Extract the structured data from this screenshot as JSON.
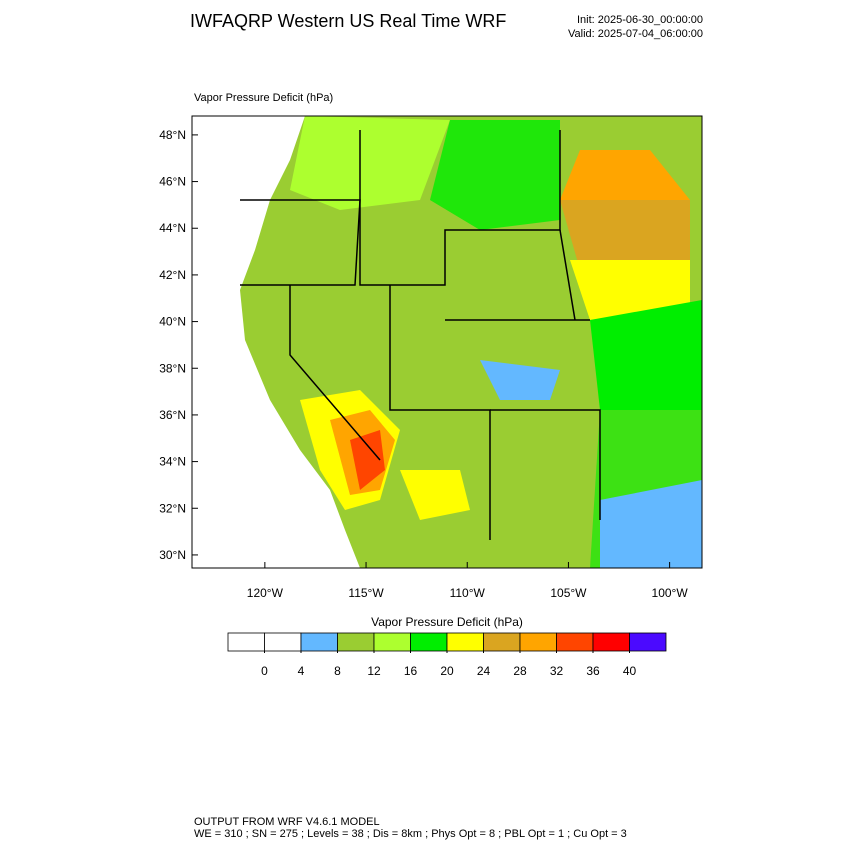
{
  "header": {
    "title": "IWFAQRP Western US Real Time WRF",
    "init": "Init: 2025-06-30_00:00:00",
    "valid": "Valid: 2025-07-04_06:00:00"
  },
  "map": {
    "field_label": "Vapor Pressure Deficit   (hPa)",
    "lon_range": [
      -123.6,
      -98.4
    ],
    "lat_range": [
      29.44,
      48.81
    ],
    "lat_ticks": [
      {
        "value": 30,
        "label": "30°N"
      },
      {
        "value": 32,
        "label": "32°N"
      },
      {
        "value": 34,
        "label": "34°N"
      },
      {
        "value": 36,
        "label": "36°N"
      },
      {
        "value": 38,
        "label": "38°N"
      },
      {
        "value": 40,
        "label": "40°N"
      },
      {
        "value": 42,
        "label": "42°N"
      },
      {
        "value": 44,
        "label": "44°N"
      },
      {
        "value": 46,
        "label": "46°N"
      },
      {
        "value": 48,
        "label": "48°N"
      }
    ],
    "lon_ticks": [
      {
        "value": -120,
        "label": "120°W"
      },
      {
        "value": -115,
        "label": "115°W"
      },
      {
        "value": -110,
        "label": "110°W"
      },
      {
        "value": -105,
        "label": "105°W"
      },
      {
        "value": -100,
        "label": "100°W"
      }
    ]
  },
  "colorbar": {
    "title": "Vapor Pressure Deficit  (hPa)",
    "levels": [
      0,
      4,
      8,
      12,
      16,
      20,
      24,
      28,
      32,
      36,
      40
    ],
    "colors": [
      "#ffffff",
      "#ffffff",
      "#63b8ff",
      "#9acd32",
      "#adff2f",
      "#00ee00",
      "#ffff00",
      "#daa520",
      "#ffa500",
      "#ff4500",
      "#ff0000",
      "#4b0aff"
    ]
  },
  "footer": {
    "line1": "OUTPUT FROM WRF V4.6.1 MODEL",
    "line2": "WE = 310 ; SN = 275 ; Levels = 38 ; Dis = 8km ; Phys Opt = 8 ; PBL Opt = 1 ; Cu Opt = 3"
  }
}
